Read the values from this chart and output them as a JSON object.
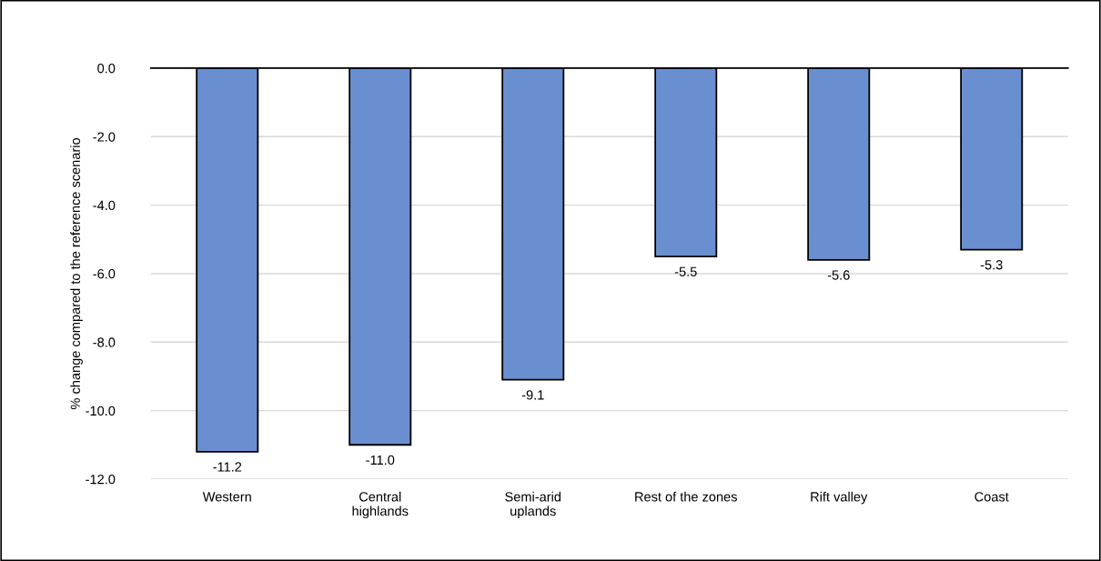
{
  "chart_data": {
    "type": "bar",
    "ylabel": "% change compared to the reference scenario",
    "categories": [
      "Western",
      "Central\nhighlands",
      "Semi-arid\nuplands",
      "Rest of the zones",
      "Rift valley",
      "Coast"
    ],
    "values": [
      -11.2,
      -11.0,
      -9.1,
      -5.5,
      -5.6,
      -5.3
    ],
    "value_labels": [
      "-11.2",
      "-11.0",
      "-9.1",
      "-5.5",
      "-5.6",
      "-5.3"
    ],
    "color": "#6a8fd0",
    "ylim": [
      -12,
      0
    ],
    "yticks": [
      {
        "value": 0,
        "label": "0.0"
      },
      {
        "value": -2,
        "label": "-2.0"
      },
      {
        "value": -4,
        "label": "-4.0"
      },
      {
        "value": -6,
        "label": "-6.0"
      },
      {
        "value": -8,
        "label": "-8.0"
      },
      {
        "value": -10,
        "label": "-10.0"
      },
      {
        "value": -12,
        "label": "-12.0"
      }
    ],
    "grid": "y"
  }
}
